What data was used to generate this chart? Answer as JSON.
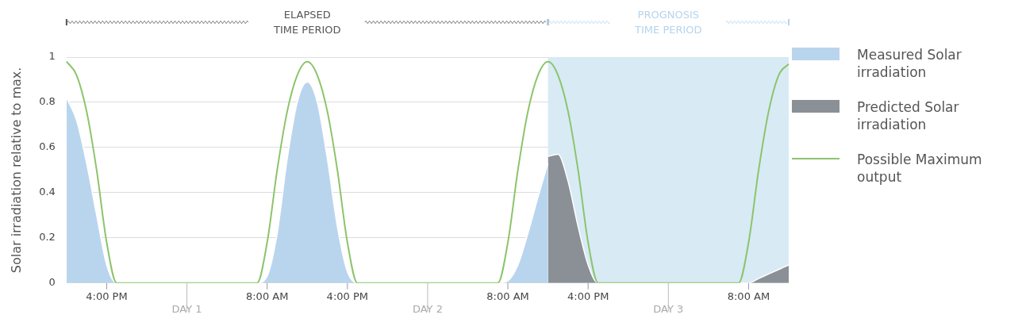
{
  "chart_data": {
    "type": "area",
    "ylabel": "Solar irradiation relative to max.",
    "categories": [
      null,
      null,
      null,
      null,
      "4:00 PM",
      null,
      null,
      null,
      null,
      null,
      null,
      null,
      "DAY 1",
      null,
      null,
      null,
      null,
      null,
      null,
      null,
      "8:00 AM",
      null,
      null,
      null,
      null,
      null,
      null,
      null,
      "4:00 PM",
      null,
      null,
      null,
      null,
      null,
      null,
      null,
      "DAY 2",
      null,
      null,
      null,
      null,
      null,
      null,
      null,
      "8:00 AM",
      null,
      null,
      null,
      null,
      null,
      null,
      null,
      "4:00 PM",
      null,
      null,
      null,
      null,
      null,
      null,
      null,
      "DAY 3",
      null,
      null,
      null,
      null,
      null,
      null,
      null,
      "8:00 AM",
      null,
      null,
      null,
      null
    ],
    "ylim": [
      0,
      1
    ],
    "yticks": [
      0,
      0.2,
      0.4,
      0.6,
      0.8,
      1
    ],
    "grid": "y",
    "legend": "right",
    "annotations": [
      "ELAPSED TIME PERIOD",
      "PROGNOSIS TIME PERIOD"
    ],
    "series": [
      {
        "name": "Measured Solar irradiation",
        "color": "#b9d5ee",
        "values": [
          0.82,
          0.72,
          0.53,
          0.3,
          0.08,
          0,
          0,
          0,
          0,
          0,
          0,
          0,
          0,
          0,
          0,
          0,
          0,
          0,
          0,
          0,
          0.03,
          0.22,
          0.55,
          0.8,
          0.89,
          0.8,
          0.55,
          0.25,
          0.05,
          0,
          0,
          0,
          0,
          0,
          0,
          0,
          0,
          0,
          0,
          0,
          0,
          0,
          0,
          0,
          0.01,
          0.08,
          0.22,
          0.38,
          0.53,
          null,
          null,
          null,
          null,
          null,
          null,
          null,
          null,
          null,
          null,
          null,
          null,
          null,
          null,
          null,
          null,
          null,
          null,
          null,
          null,
          null,
          null,
          null,
          null
        ]
      },
      {
        "name": "Predicted Solar irradiation",
        "color": "#8a9096",
        "values": [
          null,
          null,
          null,
          null,
          null,
          null,
          null,
          null,
          null,
          null,
          null,
          null,
          null,
          null,
          null,
          null,
          null,
          null,
          null,
          null,
          null,
          null,
          null,
          null,
          null,
          null,
          null,
          null,
          null,
          null,
          null,
          null,
          null,
          null,
          null,
          null,
          null,
          null,
          null,
          null,
          null,
          null,
          null,
          null,
          null,
          null,
          null,
          null,
          0.56,
          0.57,
          0.45,
          0.25,
          0.08,
          0,
          0,
          0,
          0,
          0,
          0,
          0,
          0,
          0,
          0,
          0,
          0,
          0,
          0,
          0,
          0,
          0.02,
          0.04,
          0.06,
          0.08
        ]
      },
      {
        "name": "Possible Maximum output",
        "type": "line",
        "color": "#8cc46c",
        "values": [
          0.98,
          0.92,
          0.76,
          0.5,
          0.18,
          0,
          0,
          0,
          0,
          0,
          0,
          0,
          0,
          0,
          0,
          0,
          0,
          0,
          0,
          0,
          0.18,
          0.5,
          0.76,
          0.92,
          0.98,
          0.92,
          0.76,
          0.5,
          0.18,
          0,
          0,
          0,
          0,
          0,
          0,
          0,
          0,
          0,
          0,
          0,
          0,
          0,
          0,
          0,
          0.18,
          0.5,
          0.76,
          0.92,
          0.98,
          0.92,
          0.76,
          0.5,
          0.18,
          0,
          0,
          0,
          0,
          0,
          0,
          0,
          0,
          0,
          0,
          0,
          0,
          0,
          0,
          0,
          0.18,
          0.5,
          0.76,
          0.92,
          0.97
        ]
      }
    ]
  }
}
